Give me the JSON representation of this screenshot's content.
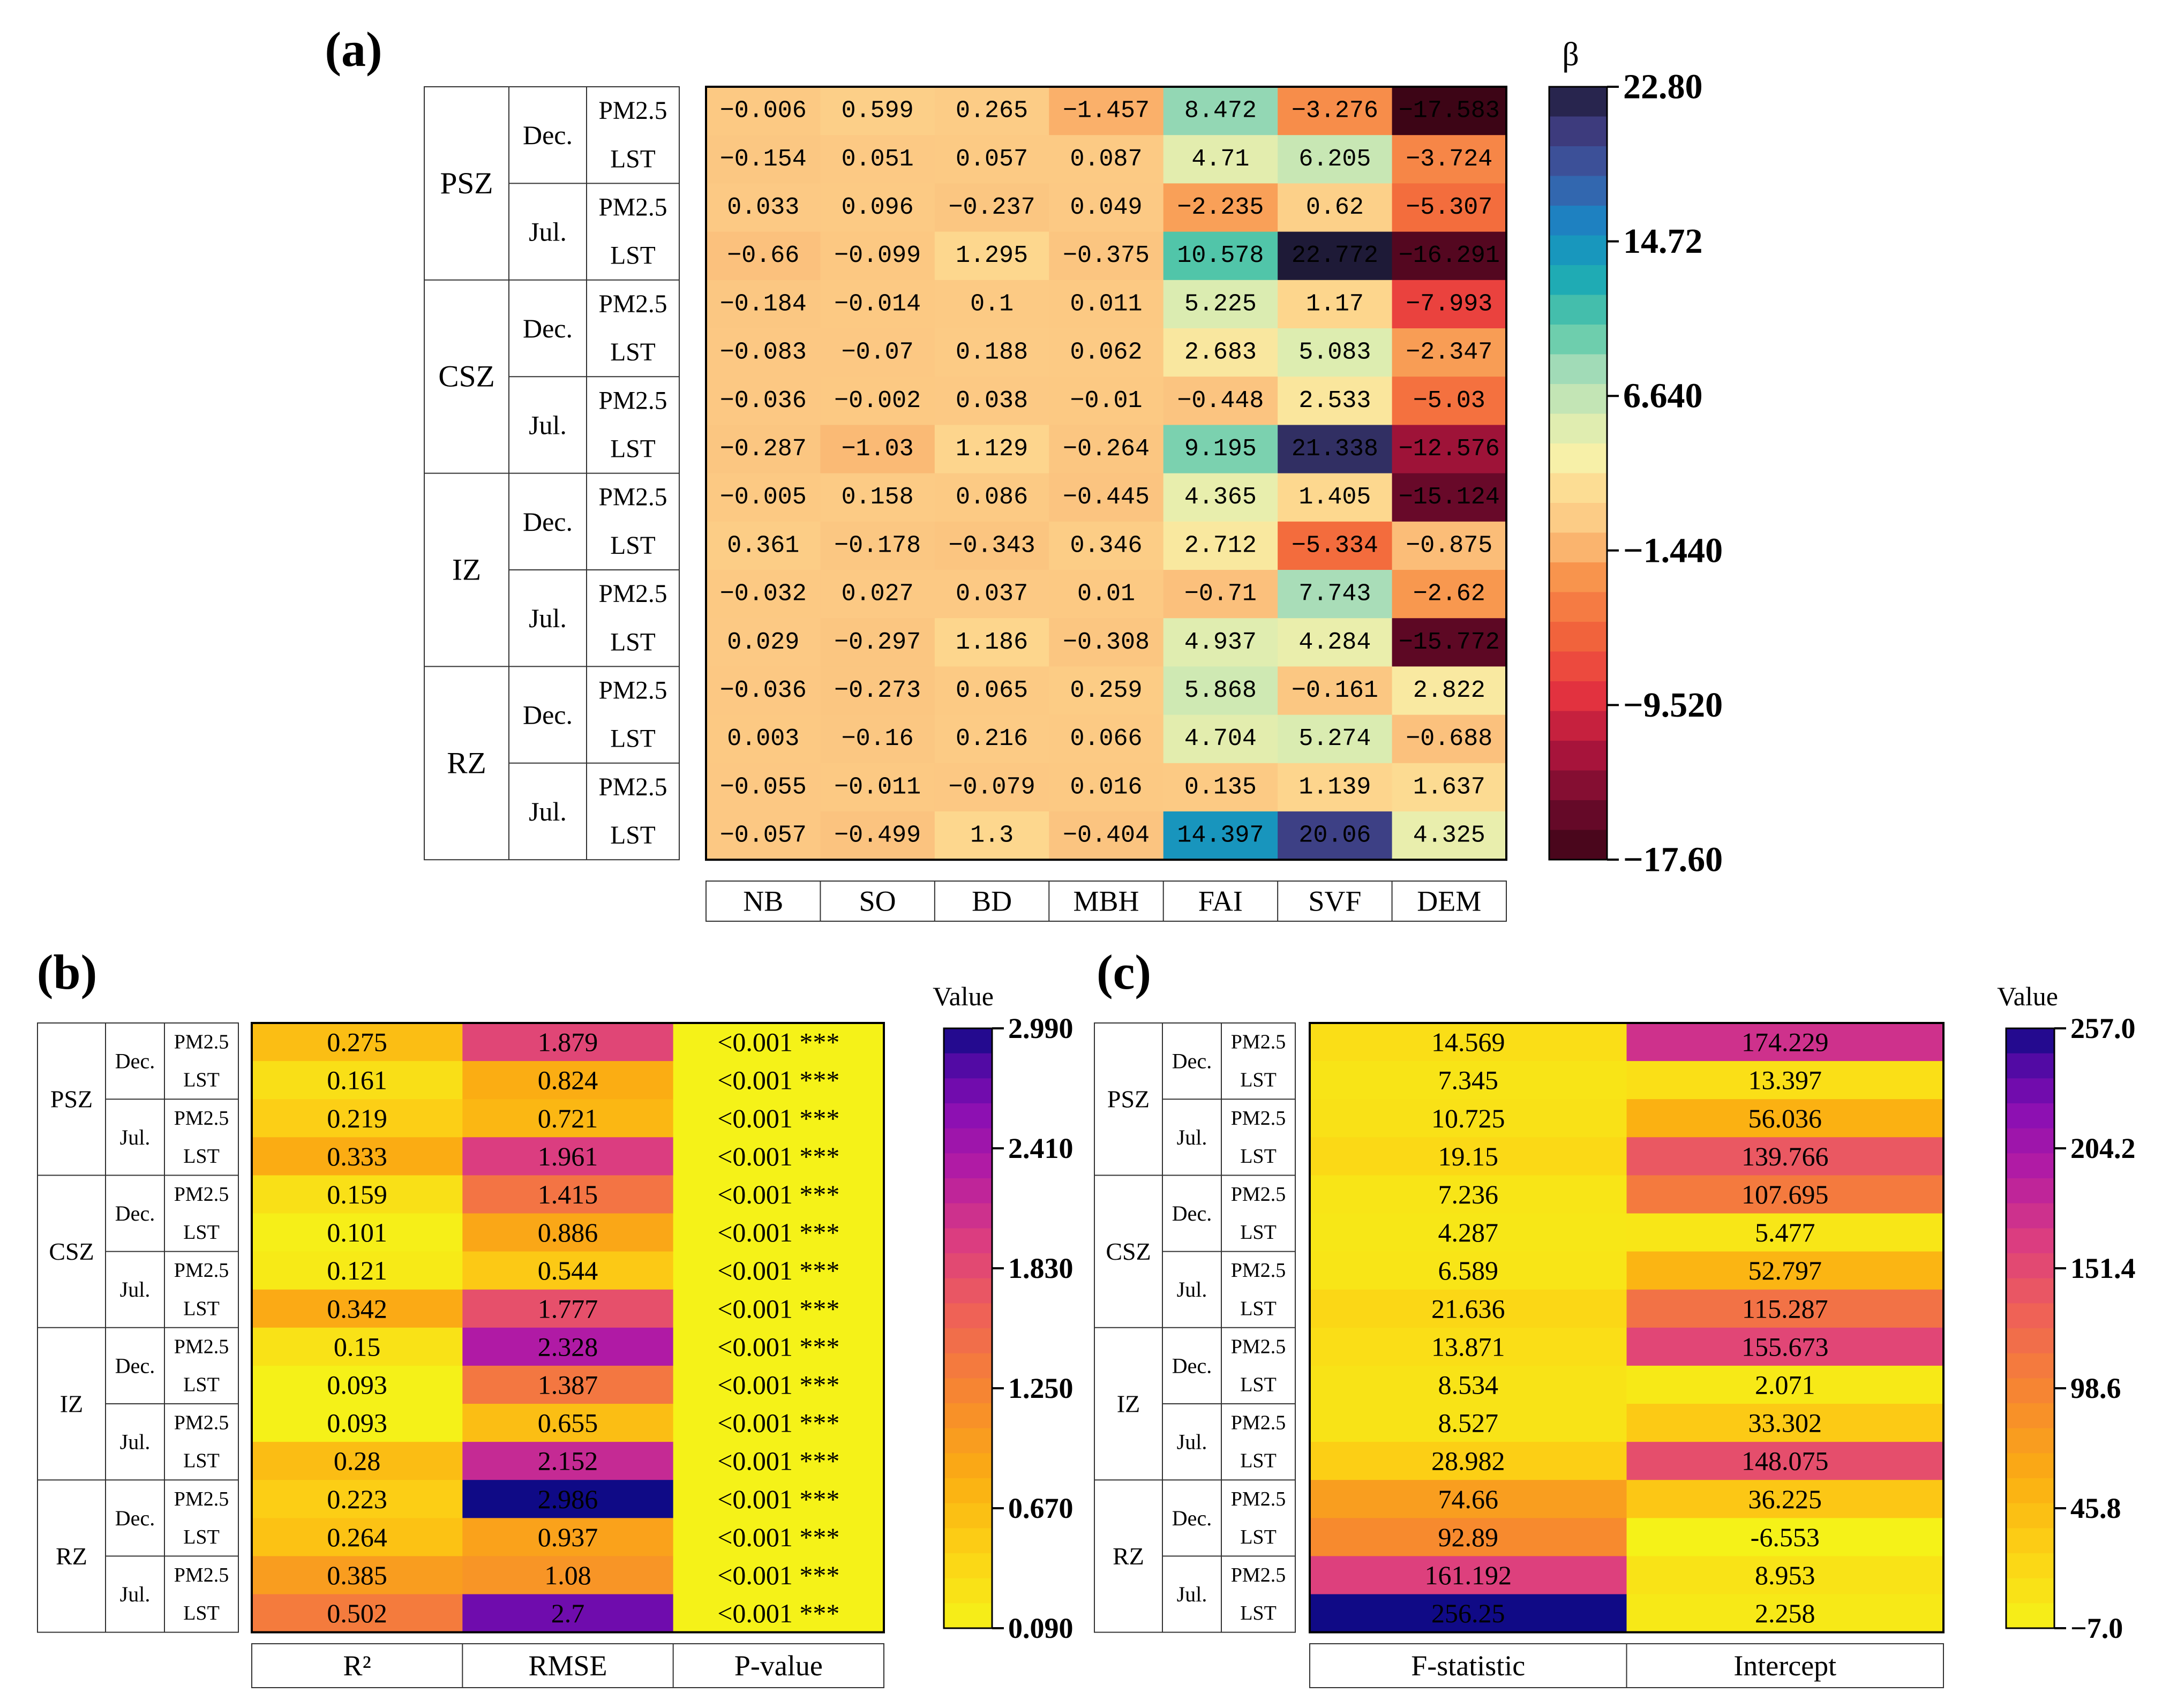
{
  "chart_data": [
    {
      "type": "heatmap",
      "panel_label": "(a)",
      "legend_title": "β",
      "zones": [
        "PSZ",
        "CSZ",
        "IZ",
        "RZ"
      ],
      "months": [
        "Dec.",
        "Jul."
      ],
      "pollutants": [
        "PM2.5",
        "LST"
      ],
      "columns": [
        "NB",
        "SO",
        "BD",
        "MBH",
        "FAI",
        "SVF",
        "DEM"
      ],
      "values": [
        [
          "-0.006",
          "0.599",
          "0.265",
          "-1.457",
          "8.472",
          "-3.276",
          "-17.583"
        ],
        [
          "-0.154",
          "0.051",
          "0.057",
          "0.087",
          "4.71",
          "6.205",
          "-3.724"
        ],
        [
          "0.033",
          "0.096",
          "-0.237",
          "0.049",
          "-2.235",
          "0.62",
          "-5.307"
        ],
        [
          "-0.66",
          "-0.099",
          "1.295",
          "-0.375",
          "10.578",
          "22.772",
          "-16.291"
        ],
        [
          "-0.184",
          "-0.014",
          "0.1",
          "0.011",
          "5.225",
          "1.17",
          "-7.993"
        ],
        [
          "-0.083",
          "-0.07",
          "0.188",
          "0.062",
          "2.683",
          "5.083",
          "-2.347"
        ],
        [
          "-0.036",
          "-0.002",
          "0.038",
          "-0.01",
          "-0.448",
          "2.533",
          "-5.03"
        ],
        [
          "-0.287",
          "-1.03",
          "1.129",
          "-0.264",
          "9.195",
          "21.338",
          "-12.576"
        ],
        [
          "-0.005",
          "0.158",
          "0.086",
          "-0.445",
          "4.365",
          "1.405",
          "-15.124"
        ],
        [
          "0.361",
          "-0.178",
          "-0.343",
          "0.346",
          "2.712",
          "-5.334",
          "-0.875"
        ],
        [
          "-0.032",
          "0.027",
          "0.037",
          "0.01",
          "-0.71",
          "7.743",
          "-2.62"
        ],
        [
          "0.029",
          "-0.297",
          "1.186",
          "-0.308",
          "4.937",
          "4.284",
          "-15.772"
        ],
        [
          "-0.036",
          "-0.273",
          "0.065",
          "0.259",
          "5.868",
          "-0.161",
          "2.822"
        ],
        [
          "0.003",
          "-0.16",
          "0.216",
          "0.066",
          "4.704",
          "5.274",
          "-0.688"
        ],
        [
          "-0.055",
          "-0.011",
          "-0.079",
          "0.016",
          "0.135",
          "1.139",
          "1.637"
        ],
        [
          "-0.057",
          "-0.499",
          "1.3",
          "-0.404",
          "14.397",
          "20.06",
          "4.325"
        ]
      ],
      "colorbar": {
        "min": -17.6,
        "max": 22.8,
        "ticks": [
          "22.80",
          "14.72",
          "6.640",
          "−1.440",
          "−9.520",
          "−17.60"
        ]
      }
    },
    {
      "type": "heatmap",
      "panel_label": "(b)",
      "legend_title": "Value",
      "zones": [
        "PSZ",
        "CSZ",
        "IZ",
        "RZ"
      ],
      "months": [
        "Dec.",
        "Jul."
      ],
      "pollutants": [
        "PM2.5",
        "LST"
      ],
      "columns": [
        "R²",
        "RMSE",
        "P-value"
      ],
      "rows": [
        [
          "0.275",
          "1.879",
          "<0.001 ***"
        ],
        [
          "0.161",
          "0.824",
          "<0.001 ***"
        ],
        [
          "0.219",
          "0.721",
          "<0.001 ***"
        ],
        [
          "0.333",
          "1.961",
          "<0.001 ***"
        ],
        [
          "0.159",
          "1.415",
          "<0.001 ***"
        ],
        [
          "0.101",
          "0.886",
          "<0.001 ***"
        ],
        [
          "0.121",
          "0.544",
          "<0.001 ***"
        ],
        [
          "0.342",
          "1.777",
          "<0.001 ***"
        ],
        [
          "0.15",
          "2.328",
          "<0.001 ***"
        ],
        [
          "0.093",
          "1.387",
          "<0.001 ***"
        ],
        [
          "0.093",
          "0.655",
          "<0.001 ***"
        ],
        [
          "0.28",
          "2.152",
          "<0.001 ***"
        ],
        [
          "0.223",
          "2.986",
          "<0.001 ***"
        ],
        [
          "0.264",
          "0.937",
          "<0.001 ***"
        ],
        [
          "0.385",
          "1.08",
          "<0.001 ***"
        ],
        [
          "0.502",
          "2.7",
          "<0.001 ***"
        ]
      ],
      "colorbar": {
        "min": 0.09,
        "max": 2.99,
        "ticks": [
          "2.990",
          "2.410",
          "1.830",
          "1.250",
          "0.670",
          "0.090"
        ]
      }
    },
    {
      "type": "heatmap",
      "panel_label": "(c)",
      "legend_title": "Value",
      "zones": [
        "PSZ",
        "CSZ",
        "IZ",
        "RZ"
      ],
      "months": [
        "Dec.",
        "Jul."
      ],
      "pollutants": [
        "PM2.5",
        "LST"
      ],
      "columns": [
        "F-statistic",
        "Intercept"
      ],
      "rows": [
        [
          "14.569",
          "174.229"
        ],
        [
          "7.345",
          "13.397"
        ],
        [
          "10.725",
          "56.036"
        ],
        [
          "19.15",
          "139.766"
        ],
        [
          "7.236",
          "107.695"
        ],
        [
          "4.287",
          "5.477"
        ],
        [
          "6.589",
          "52.797"
        ],
        [
          "21.636",
          "115.287"
        ],
        [
          "13.871",
          "155.673"
        ],
        [
          "8.534",
          "2.071"
        ],
        [
          "8.527",
          "33.302"
        ],
        [
          "28.982",
          "148.075"
        ],
        [
          "74.66",
          "36.225"
        ],
        [
          "92.89",
          "-6.553"
        ],
        [
          "161.192",
          "8.953"
        ],
        [
          "256.25",
          "2.258"
        ]
      ],
      "colorbar": {
        "min": -7.0,
        "max": 257.0,
        "ticks": [
          "257.0",
          "204.2",
          "151.4",
          "98.6",
          "45.8",
          "−7.0"
        ]
      }
    }
  ]
}
